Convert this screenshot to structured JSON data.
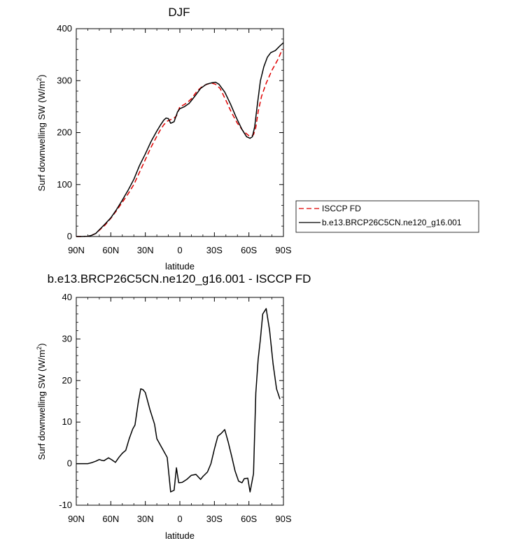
{
  "chart_data": [
    {
      "type": "line",
      "title": "DJF",
      "xlabel": "latitude",
      "ylabel": "Surf downwelling SW (W/m²)",
      "ylabel_main": "Surf downwelling SW (W/m",
      "ylabel_sup": "2",
      "ylabel_end": ")",
      "xlim": [
        90,
        -90
      ],
      "ylim": [
        0,
        400
      ],
      "x_ticks": [
        90,
        60,
        30,
        0,
        -30,
        -60,
        -90
      ],
      "x_tick_labels": [
        "90N",
        "60N",
        "30N",
        "0",
        "30S",
        "60S",
        "90S"
      ],
      "y_ticks": [
        0,
        100,
        200,
        300,
        400
      ],
      "y_tick_labels": [
        "0",
        "100",
        "200",
        "300",
        "400"
      ],
      "legend": "right",
      "series": [
        {
          "name": "ISCCP FD",
          "color": "#e00000",
          "dash": "dashed",
          "points": [
            [
              90,
              0
            ],
            [
              85,
              0
            ],
            [
              80,
              0.5
            ],
            [
              77,
              2
            ],
            [
              73,
              6
            ],
            [
              70,
              12
            ],
            [
              65,
              22
            ],
            [
              60,
              35
            ],
            [
              55,
              50
            ],
            [
              50,
              66
            ],
            [
              45,
              82
            ],
            [
              40,
              100
            ],
            [
              35,
              124
            ],
            [
              30,
              148
            ],
            [
              25,
              172
            ],
            [
              20,
              193
            ],
            [
              17,
              205
            ],
            [
              14,
              215
            ],
            [
              11,
              222
            ],
            [
              8,
              225
            ],
            [
              5,
              228
            ],
            [
              3,
              232
            ],
            [
              0,
              250
            ],
            [
              -3,
              253
            ],
            [
              -6,
              257
            ],
            [
              -10,
              265
            ],
            [
              -15,
              280
            ],
            [
              -20,
              290
            ],
            [
              -25,
              294
            ],
            [
              -28,
              295
            ],
            [
              -31,
              293
            ],
            [
              -35,
              285
            ],
            [
              -40,
              262
            ],
            [
              -45,
              238
            ],
            [
              -50,
              218
            ],
            [
              -55,
              203
            ],
            [
              -60,
              194
            ],
            [
              -62,
              193
            ],
            [
              -64,
              196
            ],
            [
              -66,
              210
            ],
            [
              -68,
              240
            ],
            [
              -71,
              270
            ],
            [
              -75,
              295
            ],
            [
              -80,
              320
            ],
            [
              -85,
              340
            ],
            [
              -88,
              355
            ],
            [
              -90,
              360
            ]
          ]
        },
        {
          "name": "b.e13.BRCP26C5CN.ne120_g16.001",
          "color": "#000000",
          "dash": "solid",
          "points": [
            [
              90,
              0
            ],
            [
              85,
              0
            ],
            [
              80,
              0.5
            ],
            [
              77,
              2
            ],
            [
              73,
              6
            ],
            [
              70,
              13
            ],
            [
              65,
              24
            ],
            [
              60,
              36
            ],
            [
              55,
              52
            ],
            [
              50,
              70
            ],
            [
              45,
              89
            ],
            [
              40,
              110
            ],
            [
              35,
              137
            ],
            [
              30,
              159
            ],
            [
              25,
              183
            ],
            [
              20,
              203
            ],
            [
              17,
              214
            ],
            [
              14,
              224
            ],
            [
              12,
              228
            ],
            [
              10,
              227
            ],
            [
              8,
              218
            ],
            [
              5,
              221
            ],
            [
              2,
              240
            ],
            [
              0,
              246
            ],
            [
              -4,
              250
            ],
            [
              -8,
              256
            ],
            [
              -13,
              270
            ],
            [
              -18,
              285
            ],
            [
              -23,
              293
            ],
            [
              -28,
              296
            ],
            [
              -31,
              297
            ],
            [
              -34,
              293
            ],
            [
              -39,
              278
            ],
            [
              -44,
              255
            ],
            [
              -49,
              229
            ],
            [
              -54,
              206
            ],
            [
              -58,
              192
            ],
            [
              -61,
              189
            ],
            [
              -63,
              192
            ],
            [
              -65,
              211
            ],
            [
              -67,
              248
            ],
            [
              -70,
              300
            ],
            [
              -73,
              327
            ],
            [
              -76,
              345
            ],
            [
              -79,
              354
            ],
            [
              -83,
              358
            ],
            [
              -87,
              367
            ],
            [
              -90,
              373
            ]
          ]
        }
      ]
    },
    {
      "type": "line",
      "title": "b.e13.BRCP26C5CN.ne120_g16.001 - ISCCP FD",
      "xlabel": "latitude",
      "ylabel": "Surf downwelling SW (W/m²)",
      "ylabel_main": "Surf downwelling SW (W/m",
      "ylabel_sup": "2",
      "ylabel_end": ")",
      "xlim": [
        90,
        -90
      ],
      "ylim": [
        -10,
        40
      ],
      "x_ticks": [
        90,
        60,
        30,
        0,
        -30,
        -60,
        -90
      ],
      "x_tick_labels": [
        "90N",
        "60N",
        "30N",
        "0",
        "30S",
        "60S",
        "90S"
      ],
      "y_ticks": [
        -10,
        0,
        10,
        20,
        30,
        40
      ],
      "y_tick_labels": [
        "-10",
        "0",
        "10",
        "20",
        "30",
        "40"
      ],
      "series": [
        {
          "color": "#000000",
          "dash": "solid",
          "points": [
            [
              90,
              0
            ],
            [
              85,
              0
            ],
            [
              80,
              0
            ],
            [
              77,
              0.2
            ],
            [
              73,
              0.6
            ],
            [
              70,
              1.0
            ],
            [
              68,
              0.8
            ],
            [
              66,
              0.7
            ],
            [
              62,
              1.4
            ],
            [
              59,
              0.9
            ],
            [
              56,
              0.3
            ],
            [
              53,
              1.5
            ],
            [
              50,
              2.5
            ],
            [
              47,
              3.2
            ],
            [
              44,
              6
            ],
            [
              41,
              8.3
            ],
            [
              39,
              9.3
            ],
            [
              36,
              15
            ],
            [
              34,
              18
            ],
            [
              32,
              17.8
            ],
            [
              30,
              17.1
            ],
            [
              26,
              13
            ],
            [
              22,
              9.5
            ],
            [
              20,
              6
            ],
            [
              17,
              4.5
            ],
            [
              14,
              3
            ],
            [
              11,
              1.5
            ],
            [
              8,
              -6.8
            ],
            [
              5,
              -6.4
            ],
            [
              3,
              -1
            ],
            [
              1,
              -4.6
            ],
            [
              -2,
              -4.5
            ],
            [
              -6,
              -3.8
            ],
            [
              -10,
              -2.8
            ],
            [
              -14,
              -2.6
            ],
            [
              -18,
              -3.8
            ],
            [
              -20,
              -3.1
            ],
            [
              -24,
              -2
            ],
            [
              -27,
              0
            ],
            [
              -30,
              3.5
            ],
            [
              -33,
              6.6
            ],
            [
              -36,
              7.3
            ],
            [
              -39,
              8.2
            ],
            [
              -42,
              5.2
            ],
            [
              -45,
              1.8
            ],
            [
              -48,
              -1.8
            ],
            [
              -51,
              -4.2
            ],
            [
              -54,
              -4.6
            ],
            [
              -56,
              -3.6
            ],
            [
              -59,
              -3.5
            ],
            [
              -61,
              -6.8
            ],
            [
              -64,
              -2.4
            ],
            [
              -66,
              17
            ],
            [
              -68,
              25
            ],
            [
              -70,
              30
            ],
            [
              -72,
              36
            ],
            [
              -75,
              37.3
            ],
            [
              -78,
              32
            ],
            [
              -81,
              24
            ],
            [
              -84,
              18
            ],
            [
              -87,
              15.5
            ]
          ]
        }
      ]
    }
  ]
}
